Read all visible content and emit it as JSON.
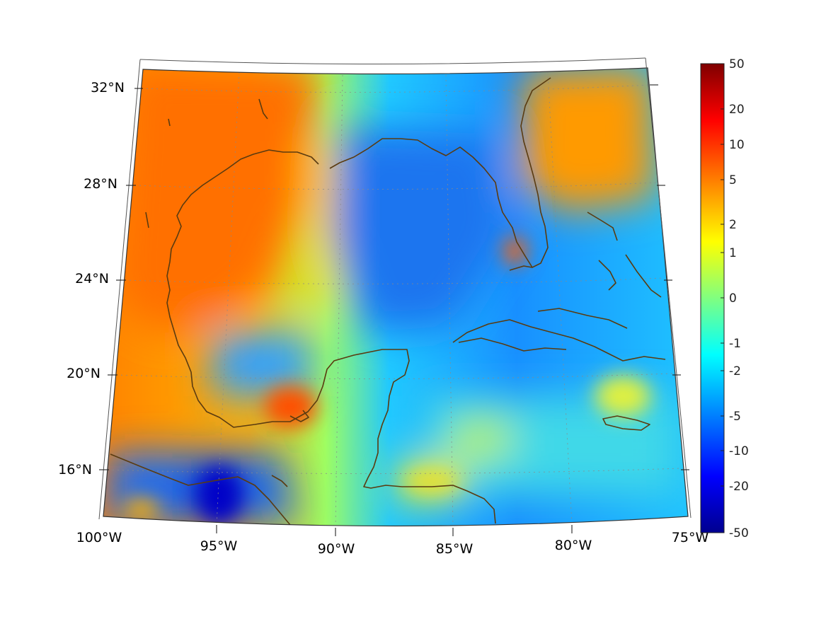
{
  "lat_labels": [
    "32°N",
    "28°N",
    "24°N",
    "20°N",
    "16°N"
  ],
  "lon_labels": [
    "100°W",
    "95°W",
    "90°W",
    "85°W",
    "80°W",
    "75°W"
  ],
  "colorbar": {
    "ticks": [
      "50",
      "20",
      "10",
      "5",
      "2",
      "1",
      "0",
      "-1",
      "-2",
      "-5",
      "-10",
      "-20",
      "-50"
    ],
    "colors": [
      "#7f0000",
      "#ff0000",
      "#ff8000",
      "#ffff00",
      "#80ff80",
      "#00ffff",
      "#0080ff",
      "#0000ff",
      "#00008f"
    ]
  },
  "palette": {
    "coastline": "#5a3b10",
    "warm": "#ff7f00",
    "cool": "#1e6fe8"
  }
}
